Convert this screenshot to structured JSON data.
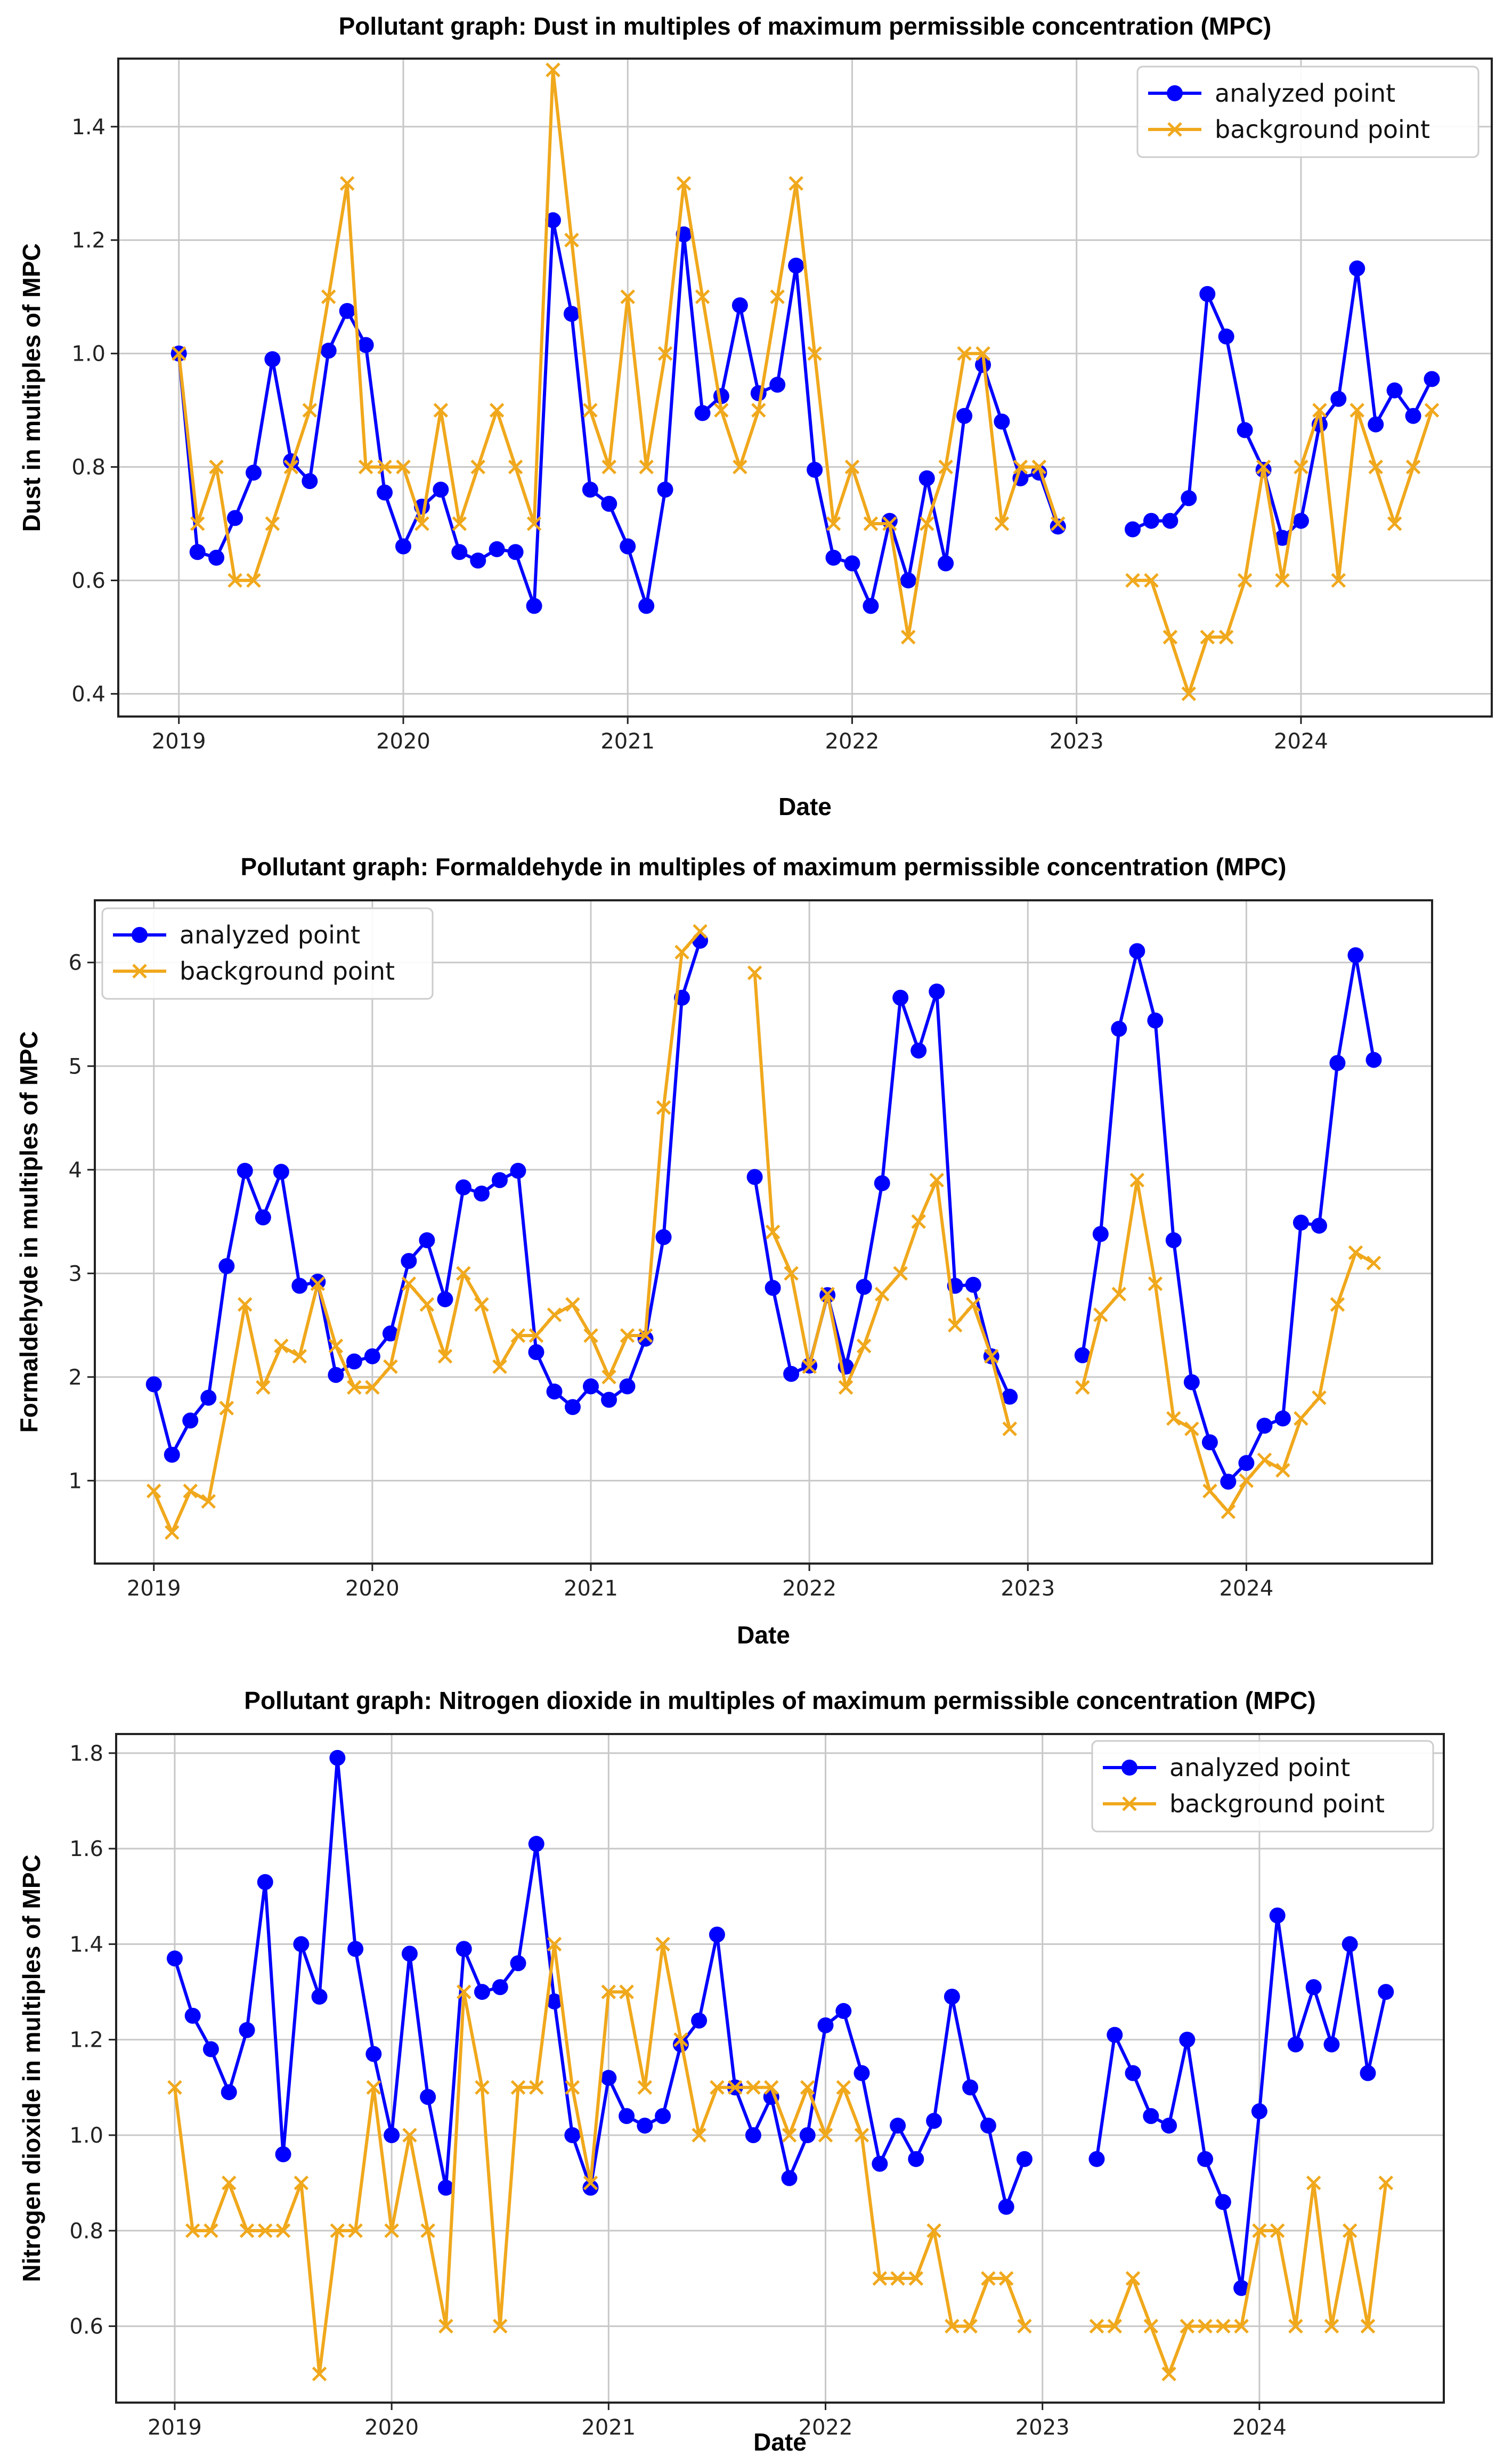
{
  "chart_data": [
    {
      "type": "line",
      "title": "Pollutant graph: Dust in multiples of maximum permissible concentration (MPC)",
      "xlabel": "Date",
      "ylabel": "Dust in multiples of MPC",
      "xlim": [
        2018.73,
        2024.85
      ],
      "ylim": [
        0.36,
        1.52
      ],
      "xticks": [
        2019,
        2020,
        2021,
        2022,
        2023,
        2024
      ],
      "yticks": [
        0.4,
        0.6,
        0.8,
        1.0,
        1.2,
        1.4
      ],
      "ytick_decimals": 1,
      "legend_position": "top-right",
      "grid": true,
      "series": [
        {
          "name": "analyzed point",
          "color": "#0000ff",
          "marker": "circle",
          "x": [
            2019.0,
            2019.083,
            2019.167,
            2019.25,
            2019.333,
            2019.417,
            2019.5,
            2019.583,
            2019.667,
            2019.75,
            2019.833,
            2019.917,
            2020.0,
            2020.083,
            2020.167,
            2020.25,
            2020.333,
            2020.417,
            2020.5,
            2020.583,
            2020.667,
            2020.75,
            2020.833,
            2020.917,
            2021.0,
            2021.083,
            2021.167,
            2021.25,
            2021.333,
            2021.417,
            2021.5,
            2021.583,
            2021.667,
            2021.75,
            2021.833,
            2021.917,
            2022.0,
            2022.083,
            2022.167,
            2022.25,
            2022.333,
            2022.417,
            2022.5,
            2022.583,
            2022.667,
            2022.75,
            2022.833,
            2022.917,
            null,
            2023.25,
            2023.333,
            2023.417,
            2023.5,
            2023.583,
            2023.667,
            2023.75,
            2023.833,
            2023.917,
            2024.0,
            2024.083,
            2024.167,
            2024.25,
            2024.333,
            2024.417,
            2024.5,
            2024.583
          ],
          "y": [
            1.0,
            0.65,
            0.64,
            0.71,
            0.79,
            0.99,
            0.81,
            0.775,
            1.005,
            1.075,
            1.015,
            0.755,
            0.66,
            0.73,
            0.76,
            0.65,
            0.635,
            0.655,
            0.65,
            0.555,
            1.235,
            1.07,
            0.76,
            0.735,
            0.66,
            0.555,
            0.76,
            1.21,
            0.895,
            0.925,
            1.085,
            0.93,
            0.945,
            1.155,
            0.795,
            0.64,
            0.63,
            0.555,
            0.705,
            0.6,
            0.78,
            0.63,
            0.89,
            0.98,
            0.88,
            0.78,
            0.79,
            0.695,
            null,
            0.69,
            0.705,
            0.705,
            0.745,
            1.105,
            1.03,
            0.865,
            0.795,
            0.675,
            0.705,
            0.875,
            0.92,
            1.15,
            0.875,
            0.935,
            0.89,
            0.955
          ]
        },
        {
          "name": "background point",
          "color": "#f0a81c",
          "marker": "x",
          "x": [
            2019.0,
            2019.083,
            2019.167,
            2019.25,
            2019.333,
            2019.417,
            2019.5,
            2019.583,
            2019.667,
            2019.75,
            2019.833,
            2019.917,
            2020.0,
            2020.083,
            2020.167,
            2020.25,
            2020.333,
            2020.417,
            2020.5,
            2020.583,
            2020.667,
            2020.75,
            2020.833,
            2020.917,
            2021.0,
            2021.083,
            2021.167,
            2021.25,
            2021.333,
            2021.417,
            2021.5,
            2021.583,
            2021.667,
            2021.75,
            2021.833,
            2021.917,
            2022.0,
            2022.083,
            2022.167,
            2022.25,
            2022.333,
            2022.417,
            2022.5,
            2022.583,
            2022.667,
            2022.75,
            2022.833,
            2022.917,
            null,
            2023.25,
            2023.333,
            2023.417,
            2023.5,
            2023.583,
            2023.667,
            2023.75,
            2023.833,
            2023.917,
            2024.0,
            2024.083,
            2024.167,
            2024.25,
            2024.333,
            2024.417,
            2024.5,
            2024.583
          ],
          "y": [
            1.0,
            0.7,
            0.8,
            0.6,
            0.6,
            0.7,
            0.8,
            0.9,
            1.1,
            1.3,
            0.8,
            0.8,
            0.8,
            0.7,
            0.9,
            0.7,
            0.8,
            0.9,
            0.8,
            0.7,
            1.5,
            1.2,
            0.9,
            0.8,
            1.1,
            0.8,
            1.0,
            1.3,
            1.1,
            0.9,
            0.8,
            0.9,
            1.1,
            1.3,
            1.0,
            0.7,
            0.8,
            0.7,
            0.7,
            0.5,
            0.7,
            0.8,
            1.0,
            1.0,
            0.7,
            0.8,
            0.8,
            0.7,
            null,
            0.6,
            0.6,
            0.5,
            0.4,
            0.5,
            0.5,
            0.6,
            0.8,
            0.6,
            0.8,
            0.9,
            0.6,
            0.9,
            0.8,
            0.7,
            0.8,
            0.9
          ]
        }
      ]
    },
    {
      "type": "line",
      "title": "Pollutant graph: Formaldehyde in multiples of maximum permissible concentration (MPC)",
      "xlabel": "Date",
      "ylabel": "Formaldehyde in multiples of MPC",
      "xlim": [
        2018.73,
        2024.85
      ],
      "ylim": [
        0.2,
        6.6
      ],
      "xticks": [
        2019,
        2020,
        2021,
        2022,
        2023,
        2024
      ],
      "yticks": [
        1,
        2,
        3,
        4,
        5,
        6
      ],
      "ytick_decimals": 0,
      "legend_position": "top-left",
      "grid": true,
      "series": [
        {
          "name": "analyzed point",
          "color": "#0000ff",
          "marker": "circle",
          "x": [
            2019.0,
            2019.083,
            2019.167,
            2019.25,
            2019.333,
            2019.417,
            2019.5,
            2019.583,
            2019.667,
            2019.75,
            2019.833,
            2019.917,
            2020.0,
            2020.083,
            2020.167,
            2020.25,
            2020.333,
            2020.417,
            2020.5,
            2020.583,
            2020.667,
            2020.75,
            2020.833,
            2020.917,
            2021.0,
            2021.083,
            2021.167,
            2021.25,
            2021.333,
            2021.417,
            2021.5,
            null,
            2021.75,
            2021.833,
            2021.917,
            2022.0,
            2022.083,
            2022.167,
            2022.25,
            2022.333,
            2022.417,
            2022.5,
            2022.583,
            2022.667,
            2022.75,
            2022.833,
            2022.917,
            null,
            2023.25,
            2023.333,
            2023.417,
            2023.5,
            2023.583,
            2023.667,
            2023.75,
            2023.833,
            2023.917,
            2024.0,
            2024.083,
            2024.167,
            2024.25,
            2024.333,
            2024.417,
            2024.5,
            2024.583
          ],
          "y": [
            1.93,
            1.25,
            1.58,
            1.8,
            3.07,
            3.99,
            3.54,
            3.98,
            2.88,
            2.92,
            2.02,
            2.15,
            2.2,
            2.42,
            3.12,
            3.32,
            2.75,
            3.83,
            3.77,
            3.9,
            3.99,
            2.24,
            1.86,
            1.71,
            1.91,
            1.78,
            1.91,
            2.37,
            3.35,
            5.66,
            6.21,
            null,
            3.93,
            2.86,
            2.03,
            2.11,
            2.79,
            2.1,
            2.87,
            3.87,
            5.66,
            5.15,
            5.72,
            2.88,
            2.89,
            2.2,
            1.81,
            null,
            2.21,
            3.38,
            5.36,
            6.11,
            5.44,
            3.32,
            1.95,
            1.37,
            0.99,
            1.17,
            1.53,
            1.6,
            3.49,
            3.46,
            5.03,
            6.07,
            5.06
          ]
        },
        {
          "name": "background point",
          "color": "#f0a81c",
          "marker": "x",
          "x": [
            2019.0,
            2019.083,
            2019.167,
            2019.25,
            2019.333,
            2019.417,
            2019.5,
            2019.583,
            2019.667,
            2019.75,
            2019.833,
            2019.917,
            2020.0,
            2020.083,
            2020.167,
            2020.25,
            2020.333,
            2020.417,
            2020.5,
            2020.583,
            2020.667,
            2020.75,
            2020.833,
            2020.917,
            2021.0,
            2021.083,
            2021.167,
            2021.25,
            2021.333,
            2021.417,
            2021.5,
            null,
            2021.75,
            2021.833,
            2021.917,
            2022.0,
            2022.083,
            2022.167,
            2022.25,
            2022.333,
            2022.417,
            2022.5,
            2022.583,
            2022.667,
            2022.75,
            2022.833,
            2022.917,
            null,
            2023.25,
            2023.333,
            2023.417,
            2023.5,
            2023.583,
            2023.667,
            2023.75,
            2023.833,
            2023.917,
            2024.0,
            2024.083,
            2024.167,
            2024.25,
            2024.333,
            2024.417,
            2024.5,
            2024.583
          ],
          "y": [
            0.9,
            0.5,
            0.9,
            0.8,
            1.7,
            2.7,
            1.9,
            2.3,
            2.2,
            2.9,
            2.3,
            1.9,
            1.9,
            2.1,
            2.9,
            2.7,
            2.2,
            3.0,
            2.7,
            2.1,
            2.4,
            2.4,
            2.6,
            2.7,
            2.4,
            2.0,
            2.4,
            2.4,
            4.6,
            6.1,
            6.3,
            null,
            5.9,
            3.4,
            3.0,
            2.1,
            2.8,
            1.9,
            2.3,
            2.8,
            3.0,
            3.5,
            3.9,
            2.5,
            2.7,
            2.2,
            1.5,
            null,
            1.9,
            2.6,
            2.8,
            3.9,
            2.9,
            1.6,
            1.5,
            0.9,
            0.7,
            1.0,
            1.2,
            1.1,
            1.6,
            1.8,
            2.7,
            3.2,
            3.1
          ]
        }
      ]
    },
    {
      "type": "line",
      "title": "Pollutant graph: Nitrogen dioxide in multiples of maximum permissible concentration (MPC)",
      "xlabel": "Date",
      "ylabel": "Nitrogen dioxide in multiples of MPC",
      "xlim": [
        2018.73,
        2024.85
      ],
      "ylim": [
        0.44,
        1.84
      ],
      "xticks": [
        2019,
        2020,
        2021,
        2022,
        2023,
        2024
      ],
      "yticks": [
        0.6,
        0.8,
        1.0,
        1.2,
        1.4,
        1.6,
        1.8
      ],
      "ytick_decimals": 1,
      "legend_position": "top-right",
      "grid": true,
      "series": [
        {
          "name": "analyzed point",
          "color": "#0000ff",
          "marker": "circle",
          "x": [
            2019.0,
            2019.083,
            2019.167,
            2019.25,
            2019.333,
            2019.417,
            2019.5,
            2019.583,
            2019.667,
            2019.75,
            2019.833,
            2019.917,
            2020.0,
            2020.083,
            2020.167,
            2020.25,
            2020.333,
            2020.417,
            2020.5,
            2020.583,
            2020.667,
            2020.75,
            2020.833,
            2020.917,
            2021.0,
            2021.083,
            2021.167,
            2021.25,
            2021.333,
            2021.417,
            2021.5,
            2021.583,
            2021.667,
            2021.75,
            2021.833,
            2021.917,
            2022.0,
            2022.083,
            2022.167,
            2022.25,
            2022.333,
            2022.417,
            2022.5,
            2022.583,
            2022.667,
            2022.75,
            2022.833,
            2022.917,
            null,
            2023.25,
            2023.333,
            2023.417,
            2023.5,
            2023.583,
            2023.667,
            2023.75,
            2023.833,
            2023.917,
            2024.0,
            2024.083,
            2024.167,
            2024.25,
            2024.333,
            2024.417,
            2024.5,
            2024.583
          ],
          "y": [
            1.37,
            1.25,
            1.18,
            1.09,
            1.22,
            1.53,
            0.96,
            1.4,
            1.29,
            1.79,
            1.39,
            1.17,
            1.0,
            1.38,
            1.08,
            0.89,
            1.39,
            1.3,
            1.31,
            1.36,
            1.61,
            1.28,
            1.0,
            0.89,
            1.12,
            1.04,
            1.02,
            1.04,
            1.19,
            1.24,
            1.42,
            1.1,
            1.0,
            1.08,
            0.91,
            1.0,
            1.23,
            1.26,
            1.13,
            0.94,
            1.02,
            0.95,
            1.03,
            1.29,
            1.1,
            1.02,
            0.85,
            0.95,
            null,
            0.95,
            1.21,
            1.13,
            1.04,
            1.02,
            1.2,
            0.95,
            0.86,
            0.68,
            1.05,
            1.46,
            1.19,
            1.31,
            1.19,
            1.4,
            1.13,
            1.3
          ]
        },
        {
          "name": "background point",
          "color": "#f0a81c",
          "marker": "x",
          "x": [
            2019.0,
            2019.083,
            2019.167,
            2019.25,
            2019.333,
            2019.417,
            2019.5,
            2019.583,
            2019.667,
            2019.75,
            2019.833,
            2019.917,
            2020.0,
            2020.083,
            2020.167,
            2020.25,
            2020.333,
            2020.417,
            2020.5,
            2020.583,
            2020.667,
            2020.75,
            2020.833,
            2020.917,
            2021.0,
            2021.083,
            2021.167,
            2021.25,
            2021.333,
            2021.417,
            2021.5,
            2021.583,
            2021.667,
            2021.75,
            2021.833,
            2021.917,
            2022.0,
            2022.083,
            2022.167,
            2022.25,
            2022.333,
            2022.417,
            2022.5,
            2022.583,
            2022.667,
            2022.75,
            2022.833,
            2022.917,
            null,
            2023.25,
            2023.333,
            2023.417,
            2023.5,
            2023.583,
            2023.667,
            2023.75,
            2023.833,
            2023.917,
            2024.0,
            2024.083,
            2024.167,
            2024.25,
            2024.333,
            2024.417,
            2024.5,
            2024.583
          ],
          "y": [
            1.1,
            0.8,
            0.8,
            0.9,
            0.8,
            0.8,
            0.8,
            0.9,
            0.5,
            0.8,
            0.8,
            1.1,
            0.8,
            1.0,
            0.8,
            0.6,
            1.3,
            1.1,
            0.6,
            1.1,
            1.1,
            1.4,
            1.1,
            0.9,
            1.3,
            1.3,
            1.1,
            1.4,
            1.2,
            1.0,
            1.1,
            1.1,
            1.1,
            1.1,
            1.0,
            1.1,
            1.0,
            1.1,
            1.0,
            0.7,
            0.7,
            0.7,
            0.8,
            0.6,
            0.6,
            0.7,
            0.7,
            0.6,
            null,
            0.6,
            0.6,
            0.7,
            0.6,
            0.5,
            0.6,
            0.6,
            0.6,
            0.6,
            0.8,
            0.8,
            0.6,
            0.9,
            0.6,
            0.8,
            0.6,
            0.9
          ]
        }
      ]
    }
  ]
}
